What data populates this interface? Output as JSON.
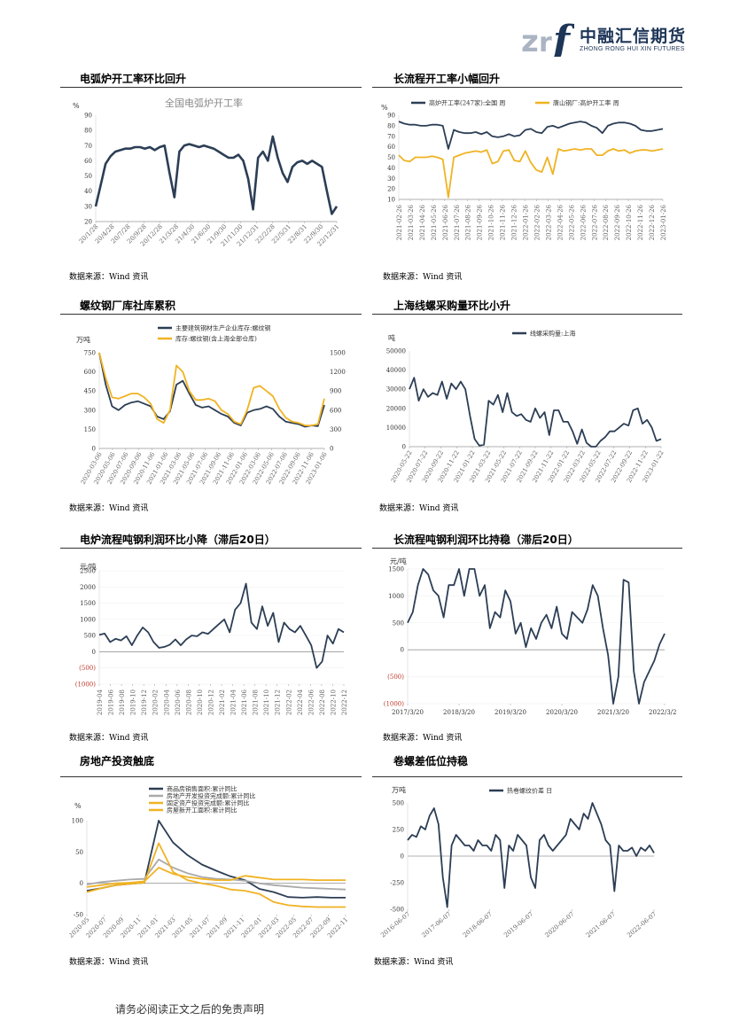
{
  "header": {
    "logo_cn": "中融汇信期货",
    "logo_en": "ZHONG RONG HUI XIN FUTURES"
  },
  "colors": {
    "navy": "#2c3e55",
    "gold": "#f0b323",
    "grey": "#aaaaaa",
    "axis": "#999999",
    "red": "#c0392b"
  },
  "panels": [
    {
      "title": "电弧炉开工率环比回升",
      "source": "数据来源：Wind 资讯",
      "chart_data": {
        "type": "line",
        "title": "全国电弧炉开工率",
        "unit": "%",
        "yticks": [
          "90",
          "80",
          "70",
          "60",
          "50",
          "40",
          "30",
          "20"
        ],
        "ylim": [
          20,
          90
        ],
        "xticks": [
          "20/1/28",
          "20/4/28",
          "20/7/28",
          "20/9/28",
          "20/12/28",
          "21/3/28",
          "21/4/30",
          "21/6/30",
          "21/9/30",
          "21/11/30",
          "21/12/31",
          "22/2/28",
          "22/5/31",
          "22/8/31",
          "22/9/30",
          "22/12/31"
        ],
        "series": [
          {
            "color": "navy",
            "values": [
              30,
              44,
              58,
              63,
              66,
              67,
              68,
              68,
              69,
              69,
              68,
              69,
              67,
              69,
              70,
              52,
              36,
              66,
              70,
              71,
              70,
              69,
              70,
              69,
              68,
              66,
              64,
              62,
              62,
              64,
              60,
              48,
              28,
              62,
              66,
              60,
              76,
              62,
              52,
              46,
              56,
              59,
              60,
              58,
              60,
              58,
              56,
              40,
              25,
              30
            ]
          }
        ]
      }
    },
    {
      "title": "长流程开工率小幅回升",
      "source": "数据来源：Wind 资讯",
      "chart_data": {
        "type": "line",
        "unit": "%",
        "yticks": [
          "90",
          "80",
          "70",
          "60",
          "50",
          "40",
          "30",
          "20",
          "10"
        ],
        "ylim": [
          10,
          90
        ],
        "xticks": [
          "2021-02-26",
          "2021-03-26",
          "2021-04-26",
          "2021-05-26",
          "2021-06-26",
          "2021-07-26",
          "2021-08-26",
          "2021-09-26",
          "2021-10-26",
          "2021-11-26",
          "2021-12-26",
          "2022-01-26",
          "2022-02-26",
          "2022-03-26",
          "2022-04-26",
          "2022-05-26",
          "2022-06-26",
          "2022-07-26",
          "2022-08-26",
          "2022-09-26",
          "2022-10-26",
          "2022-11-26",
          "2022-12-26",
          "2023-01-26"
        ],
        "legend": [
          "高炉开工率(247家):全国  周",
          "唐山钢厂:高炉开工率  周"
        ],
        "series": [
          {
            "name": "高炉开工率(247家):全国  周",
            "color": "navy",
            "values": [
              84,
              82,
              81,
              81,
              80,
              80,
              81,
              81,
              80,
              58,
              76,
              74,
              73,
              73,
              74,
              72,
              74,
              70,
              69,
              70,
              72,
              70,
              71,
              76,
              77,
              74,
              73,
              79,
              80,
              78,
              80,
              82,
              83,
              84,
              83,
              80,
              78,
              73,
              80,
              82,
              83,
              83,
              82,
              80,
              76,
              75,
              75,
              76,
              77
            ]
          },
          {
            "name": "唐山钢厂:高炉开工率  周",
            "color": "gold",
            "values": [
              52,
              47,
              46,
              50,
              50,
              50,
              51,
              50,
              48,
              12,
              50,
              52,
              54,
              55,
              56,
              55,
              57,
              44,
              46,
              56,
              57,
              47,
              46,
              56,
              45,
              38,
              36,
              50,
              34,
              58,
              56,
              57,
              58,
              57,
              58,
              58,
              52,
              52,
              56,
              58,
              56,
              57,
              54,
              56,
              57,
              57,
              56,
              57,
              58
            ]
          }
        ]
      }
    },
    {
      "title": "螺纹钢厂库社库累积",
      "source": "数据来源：Wind 资讯",
      "chart_data": {
        "type": "line",
        "unit": "万吨",
        "yticks_left": [
          "750",
          "600",
          "450",
          "300",
          "150",
          "0"
        ],
        "yticks_right": [
          "1500",
          "1200",
          "900",
          "600",
          "300",
          "0"
        ],
        "ylim_left": [
          0,
          750
        ],
        "ylim_right": [
          0,
          1500
        ],
        "xticks": [
          "2020-03-06",
          "2020-05-06",
          "2020-07-06",
          "2020-09-06",
          "2020-11-06",
          "2021-01-06",
          "2021-03-06",
          "2021-05-06",
          "2021-07-06",
          "2021-09-06",
          "2021-11-06",
          "2022-01-06",
          "2022-03-06",
          "2022-05-06",
          "2022-07-06",
          "2022-09-06",
          "2022-11-06",
          "2023-01-06"
        ],
        "legend": [
          "主要建筑钢材生产企业库存:螺纹钢",
          "库存:螺纹钢(含上海全部仓库)"
        ],
        "series": [
          {
            "name": "主要建筑钢材生产企业库存:螺纹钢",
            "color": "navy",
            "axis": "left",
            "values": [
              750,
              500,
              330,
              300,
              340,
              360,
              370,
              350,
              330,
              250,
              230,
              290,
              500,
              530,
              430,
              340,
              320,
              330,
              300,
              270,
              250,
              200,
              180,
              280,
              300,
              310,
              330,
              310,
              250,
              210,
              200,
              190,
              170,
              180,
              175,
              340
            ]
          },
          {
            "name": "库存:螺纹钢(含上海全部仓库)",
            "color": "gold",
            "axis": "right",
            "values": [
              1500,
              1100,
              800,
              780,
              820,
              860,
              860,
              800,
              700,
              460,
              400,
              600,
              1300,
              1200,
              900,
              760,
              760,
              780,
              740,
              600,
              540,
              420,
              380,
              600,
              950,
              980,
              900,
              820,
              620,
              480,
              420,
              400,
              360,
              360,
              380,
              780
            ]
          }
        ]
      }
    },
    {
      "title": "上海线螺采购量环比小升",
      "source": "数据来源：Wind 资讯",
      "chart_data": {
        "type": "line",
        "unit": "吨",
        "yticks": [
          "50000",
          "40000",
          "30000",
          "20000",
          "10000",
          "0"
        ],
        "ylim": [
          0,
          50000
        ],
        "xticks": [
          "2020-05-22",
          "2020-07-22",
          "2020-09-22",
          "2020-11-22",
          "2021-01-22",
          "2021-03-22",
          "2021-05-22",
          "2021-07-22",
          "2021-09-22",
          "2021-11-22",
          "2022-01-22",
          "2022-03-22",
          "2022-05-22",
          "2022-07-22",
          "2022-09-22",
          "2022-11-22",
          "2023-01-22"
        ],
        "legend": [
          "线螺采购量:上海"
        ],
        "series": [
          {
            "name": "线螺采购量:上海",
            "color": "navy",
            "values": [
              30000,
              36000,
              24000,
              30000,
              26000,
              28000,
              27000,
              34000,
              25000,
              33000,
              30000,
              34000,
              30000,
              16000,
              4000,
              500,
              1000,
              24000,
              22000,
              27000,
              18000,
              28000,
              18000,
              16000,
              17000,
              14000,
              13000,
              20000,
              15000,
              18000,
              6000,
              19000,
              19000,
              13000,
              13000,
              8000,
              1500,
              9000,
              2000,
              0,
              0,
              3000,
              5000,
              8000,
              8000,
              10000,
              12000,
              11000,
              19000,
              20000,
              12000,
              14000,
              10000,
              3000,
              4000
            ]
          }
        ]
      }
    },
    {
      "title": "电炉流程吨钢利润环比小降（滞后20日）",
      "source": "数据来源：Wind 资讯",
      "chart_data": {
        "type": "line",
        "unit": "元/吨",
        "yticks": [
          "2500",
          "2000",
          "1500",
          "1000",
          "500",
          "0",
          "(500)",
          "(1000)"
        ],
        "ylim": [
          -1000,
          2500
        ],
        "xticks": [
          "2019-04",
          "2019-06",
          "2019-08",
          "2019-10",
          "2019-12",
          "2020-02",
          "2020-04",
          "2020-06",
          "2020-08",
          "2020-10",
          "2020-12",
          "2021-02",
          "2021-04",
          "2021-06",
          "2021-08",
          "2021-10",
          "2021-12",
          "2022-02",
          "2022-04",
          "2022-06",
          "2022-08",
          "2022-10",
          "2022-12"
        ],
        "series": [
          {
            "color": "navy",
            "values": [
              520,
              560,
              300,
              400,
              350,
              480,
              200,
              500,
              750,
              600,
              300,
              120,
              150,
              220,
              380,
              200,
              380,
              500,
              480,
              600,
              550,
              700,
              850,
              1000,
              600,
              1300,
              1500,
              2100,
              900,
              700,
              1400,
              800,
              1200,
              300,
              900,
              700,
              600,
              800,
              500,
              200,
              -500,
              -300,
              500,
              250,
              700,
              600
            ]
          }
        ]
      }
    },
    {
      "title": "长流程吨钢利润环比持稳（滞后20日）",
      "source": "数据来源：Wind 资讯",
      "chart_data": {
        "type": "line",
        "unit": "元/吨",
        "yticks": [
          "1500",
          "1000",
          "500",
          "0",
          "(500)",
          "(1000)"
        ],
        "ylim": [
          -1000,
          1500
        ],
        "xticks": [
          "2017/3/20",
          "2018/3/20",
          "2019/3/20",
          "2020/3/20",
          "2021/3/20",
          "2022/3/20"
        ],
        "series": [
          {
            "color": "navy",
            "values": [
              500,
              700,
              1200,
              1500,
              1400,
              1100,
              1000,
              600,
              1200,
              1200,
              1500,
              1000,
              1500,
              1500,
              1000,
              1200,
              400,
              700,
              600,
              1100,
              900,
              300,
              500,
              50,
              400,
              200,
              500,
              650,
              400,
              800,
              300,
              200,
              700,
              600,
              500,
              750,
              1200,
              1000,
              400,
              -100,
              -1000,
              -500,
              1300,
              1250,
              -400,
              -1000,
              -600,
              -400,
              -200,
              100,
              300
            ]
          }
        ]
      }
    },
    {
      "title": "房地产投资触底",
      "source": "数据来源：Wind 资讯",
      "chart_data": {
        "type": "line",
        "unit": "%",
        "yticks": [
          "100",
          "50",
          "0",
          "-50"
        ],
        "ylim": [
          -50,
          100
        ],
        "xticks": [
          "2020-05",
          "2020-07",
          "2020-09",
          "2020-11",
          "2021-01",
          "2021-03",
          "2021-05",
          "2021-07",
          "2021-09",
          "2021-11",
          "2022-01",
          "2022-03",
          "2022-05",
          "2022-07",
          "2022-09",
          "2022-11"
        ],
        "legend": [
          "商品房销售面积:累计同比",
          "房地产开发投资完成额:累计同比",
          "固定资产投资完成额:累计同比",
          "房屋新开工面积:累计同比"
        ],
        "series": [
          {
            "name": "商品房销售面积:累计同比",
            "color": "navy",
            "values": [
              -12,
              -8,
              -3,
              -1,
              1,
              104,
              65,
              45,
              30,
              20,
              11,
              5,
              -9,
              -14,
              -22,
              -23,
              -22,
              -23,
              -23
            ]
          },
          {
            "name": "房地产开发投资完成额:累计同比",
            "color": "grey",
            "values": [
              -2,
              2,
              4,
              6,
              7,
              38,
              25,
              16,
              10,
              7,
              6,
              4,
              0,
              -3,
              -5,
              -7,
              -8,
              -9,
              -10
            ]
          },
          {
            "name": "固定资产投资完成额:累计同比",
            "color": "gold",
            "values": [
              -6,
              -3,
              0,
              1,
              3,
              25,
              15,
              10,
              7,
              5,
              5,
              12,
              9,
              6,
              6,
              6,
              5,
              5,
              5
            ]
          },
          {
            "name": "房屋新开工面积:累计同比",
            "color": "gold",
            "values": [
              -14,
              -8,
              -3,
              -1,
              1,
              64,
              18,
              5,
              0,
              -4,
              -10,
              -12,
              -17,
              -30,
              -35,
              -37,
              -38,
              -38,
              -38
            ]
          }
        ]
      }
    },
    {
      "title": "卷螺差低位持稳",
      "source": "数据来源：Wind 资讯",
      "chart_data": {
        "type": "line",
        "unit": "万吨",
        "yticks": [
          "500",
          "250",
          "0",
          "-250",
          "-500"
        ],
        "ylim": [
          -500,
          500
        ],
        "xticks": [
          "2016-06-07",
          "2017-06-07",
          "2018-06-07",
          "2019-06-07",
          "2020-06-07",
          "2021-06-07",
          "2022-06-07"
        ],
        "legend": [
          "热卷螺纹价差  日"
        ],
        "series": [
          {
            "name": "热卷螺纹价差  日",
            "color": "navy",
            "values": [
              150,
              200,
              180,
              280,
              250,
              380,
              450,
              300,
              -200,
              -480,
              100,
              200,
              150,
              100,
              100,
              50,
              150,
              100,
              100,
              50,
              200,
              150,
              -300,
              100,
              50,
              200,
              150,
              100,
              -200,
              -300,
              150,
              200,
              100,
              50,
              100,
              150,
              200,
              350,
              300,
              250,
              400,
              350,
              500,
              400,
              300,
              150,
              100,
              -330,
              100,
              50,
              50,
              80,
              0,
              80,
              50,
              100,
              30
            ]
          }
        ]
      }
    }
  ],
  "footer": "请务必阅读正文之后的免责声明"
}
